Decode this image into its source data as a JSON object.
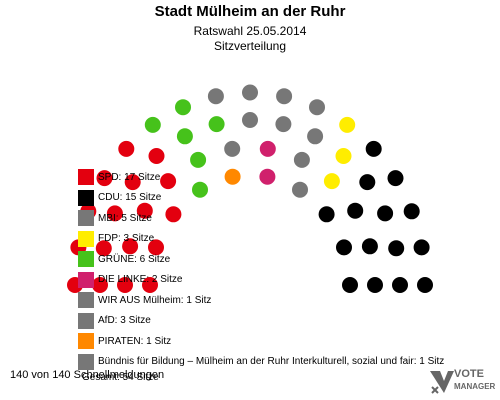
{
  "header": {
    "title": "Stadt Mülheim an der Ruhr",
    "subtitle": "Ratswahl 25.05.2014",
    "caption": "Sitzverteilung"
  },
  "chart_data": {
    "type": "parliament",
    "title": "Stadt Mülheim an der Ruhr",
    "subtitle": "Ratswahl 25.05.2014",
    "total_seats": 54,
    "parties": [
      {
        "name": "SPD",
        "seats": 17,
        "label": "SPD: 17 Sitze",
        "color": "#e3000f"
      },
      {
        "name": "CDU",
        "seats": 15,
        "label": "CDU: 15 Sitze",
        "color": "#000000"
      },
      {
        "name": "MBI",
        "seats": 5,
        "label": "MBI: 5 Sitze",
        "color": "#777777"
      },
      {
        "name": "FDP",
        "seats": 3,
        "label": "FDP: 3 Sitze",
        "color": "#ffed00"
      },
      {
        "name": "GRÜNE",
        "seats": 6,
        "label": "GRÜNE: 6 Sitze",
        "color": "#46c21b"
      },
      {
        "name": "DIE LINKE",
        "seats": 2,
        "label": "DIE LINKE: 2 Sitze",
        "color": "#d0206c"
      },
      {
        "name": "WIR AUS Mülheim",
        "seats": 1,
        "label": "WIR AUS Mülheim: 1 Sitz",
        "color": "#777777"
      },
      {
        "name": "AfD",
        "seats": 3,
        "label": "AfD: 3 Sitze",
        "color": "#777777"
      },
      {
        "name": "PIRATEN",
        "seats": 1,
        "label": "PIRATEN: 1 Sitz",
        "color": "#ff8800"
      },
      {
        "name": "Bündnis für Bildung – Mülheim an der Ruhr Interkulturell, sozial und fair",
        "seats": 1,
        "label": "Bündnis für Bildung – Mülheim an der Ruhr Interkulturell, sozial und fair: 1 Sitz",
        "color": "#777777"
      }
    ],
    "seat_order": [
      "SPD",
      "GRÜNE",
      "MBI",
      "PIRATEN",
      "MBI",
      "DIE LINKE",
      "MBI",
      "FDP",
      "CDU"
    ],
    "total_label": "Gesamt: 54 Sitze"
  },
  "footer": {
    "reporting": "140 von 140 Schnellmeldungen",
    "logo_line1": "VOTE",
    "logo_line2": "MANAGER"
  }
}
